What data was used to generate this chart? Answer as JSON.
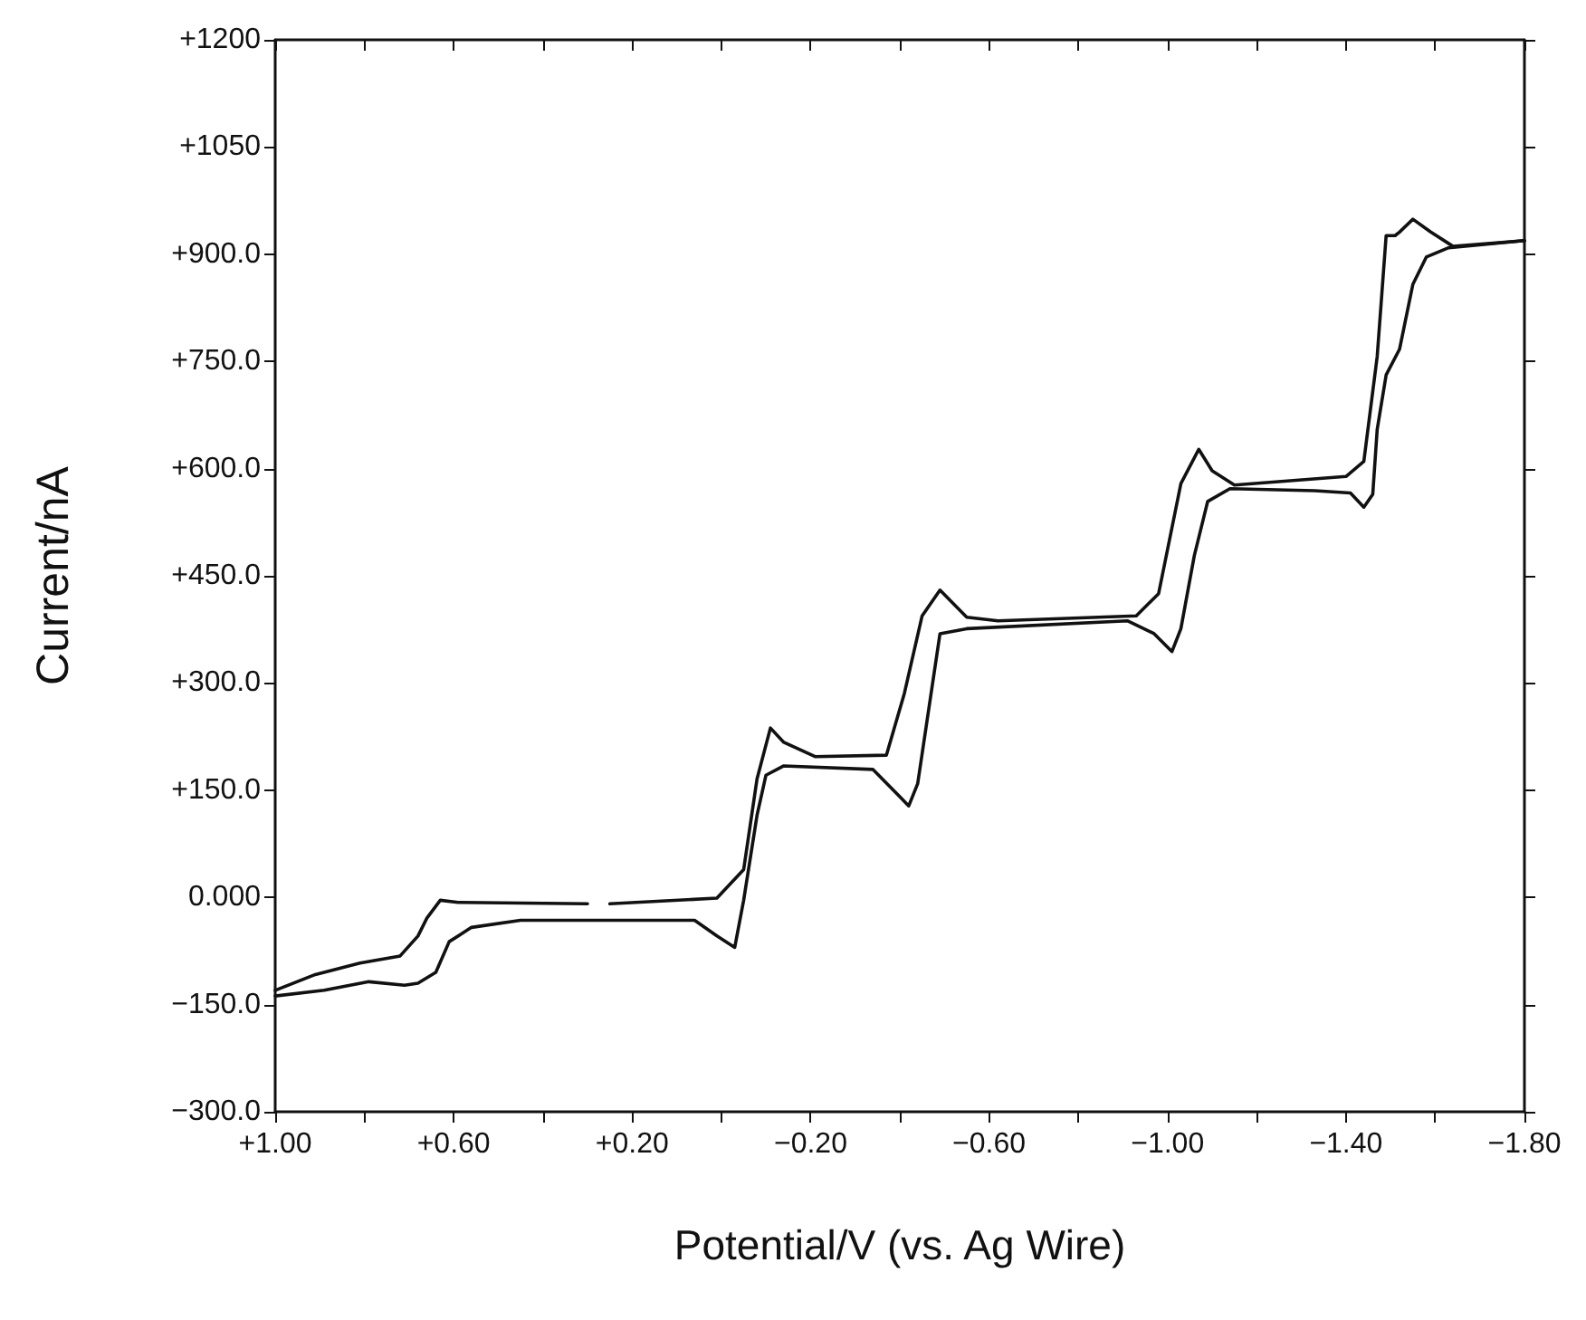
{
  "chart_data": {
    "type": "line",
    "xlabel": "Potential/V (vs. Ag Wire)",
    "ylabel": "Current/nA",
    "xlim": [
      1.0,
      -1.8
    ],
    "ylim": [
      -300,
      1200
    ],
    "xticks": [
      {
        "value": 1.0,
        "label": "+1.00"
      },
      {
        "value": 0.8,
        "label": null
      },
      {
        "value": 0.6,
        "label": "+0.60"
      },
      {
        "value": 0.4,
        "label": null
      },
      {
        "value": 0.2,
        "label": "+0.20"
      },
      {
        "value": 0.0,
        "label": null
      },
      {
        "value": -0.2,
        "label": "−0.20"
      },
      {
        "value": -0.4,
        "label": null
      },
      {
        "value": -0.6,
        "label": "−0.60"
      },
      {
        "value": -0.8,
        "label": null
      },
      {
        "value": -1.0,
        "label": "−1.00"
      },
      {
        "value": -1.2,
        "label": null
      },
      {
        "value": -1.4,
        "label": "−1.40"
      },
      {
        "value": -1.6,
        "label": null
      },
      {
        "value": -1.8,
        "label": "−1.80"
      }
    ],
    "yticks": [
      {
        "value": -300,
        "label": "−300.0"
      },
      {
        "value": -150,
        "label": "−150.0"
      },
      {
        "value": 0,
        "label": "0.000"
      },
      {
        "value": 150,
        "label": "+150.0"
      },
      {
        "value": 300,
        "label": "+300.0"
      },
      {
        "value": 450,
        "label": "+450.0"
      },
      {
        "value": 600,
        "label": "+600.0"
      },
      {
        "value": 750,
        "label": "+750.0"
      },
      {
        "value": 900,
        "label": "+900.0"
      },
      {
        "value": 1050,
        "label": "+1050"
      },
      {
        "value": 1200,
        "label": "+1200"
      }
    ],
    "grid": false,
    "marker": "none",
    "line_style": "solid",
    "series": [
      {
        "color": "#111111",
        "x": [
          1.0,
          0.91,
          0.81,
          0.72,
          0.68,
          0.66,
          0.63,
          0.59,
          0.3,
          0.275,
          0.25,
          0.01,
          -0.05,
          -0.08,
          -0.11,
          -0.14,
          -0.21,
          -0.37,
          -0.41,
          -0.45,
          -0.49,
          -0.55,
          -0.62,
          -0.93,
          -0.98,
          -1.03,
          -1.07,
          -1.1,
          -1.15,
          -1.4,
          -1.44,
          -1.47,
          -1.49,
          -1.51,
          -1.52,
          -1.55,
          -1.59,
          -1.64,
          -1.8
        ],
        "values": [
          -130,
          -108,
          -92,
          -82,
          -54,
          -29,
          -4,
          -7,
          -9,
          null,
          -9,
          -1,
          39,
          166,
          237,
          217,
          197,
          199,
          285,
          394,
          430,
          392,
          387,
          394,
          425,
          579,
          627,
          597,
          577,
          589,
          610,
          757,
          926,
          926,
          931,
          949,
          931,
          911,
          919
        ]
      },
      {
        "color": "#111111",
        "x": [
          -1.8,
          -1.63,
          -1.58,
          -1.55,
          -1.52,
          -1.49,
          -1.47,
          -1.46,
          -1.44,
          -1.41,
          -1.33,
          -1.14,
          -1.09,
          -1.06,
          -1.03,
          -1.01,
          -0.97,
          -0.91,
          -0.55,
          -0.49,
          -0.47,
          -0.44,
          -0.42,
          -0.4,
          -0.34,
          -0.14,
          -0.1,
          -0.08,
          -0.05,
          -0.03,
          0.01,
          0.06,
          0.29,
          0.45,
          0.56,
          0.61,
          0.64,
          0.68,
          0.71,
          0.79,
          0.89,
          1.0
        ],
        "values": [
          919,
          909,
          896,
          858,
          767,
          731,
          655,
          564,
          546,
          566,
          569,
          572,
          554,
          478,
          376,
          344,
          369,
          387,
          376,
          369,
          285,
          159,
          128,
          141,
          179,
          184,
          171,
          115,
          -4,
          -70,
          -54,
          -32,
          -32,
          -32,
          -42,
          -62,
          -105,
          -120,
          -123,
          -118,
          -130,
          -138
        ]
      }
    ]
  }
}
